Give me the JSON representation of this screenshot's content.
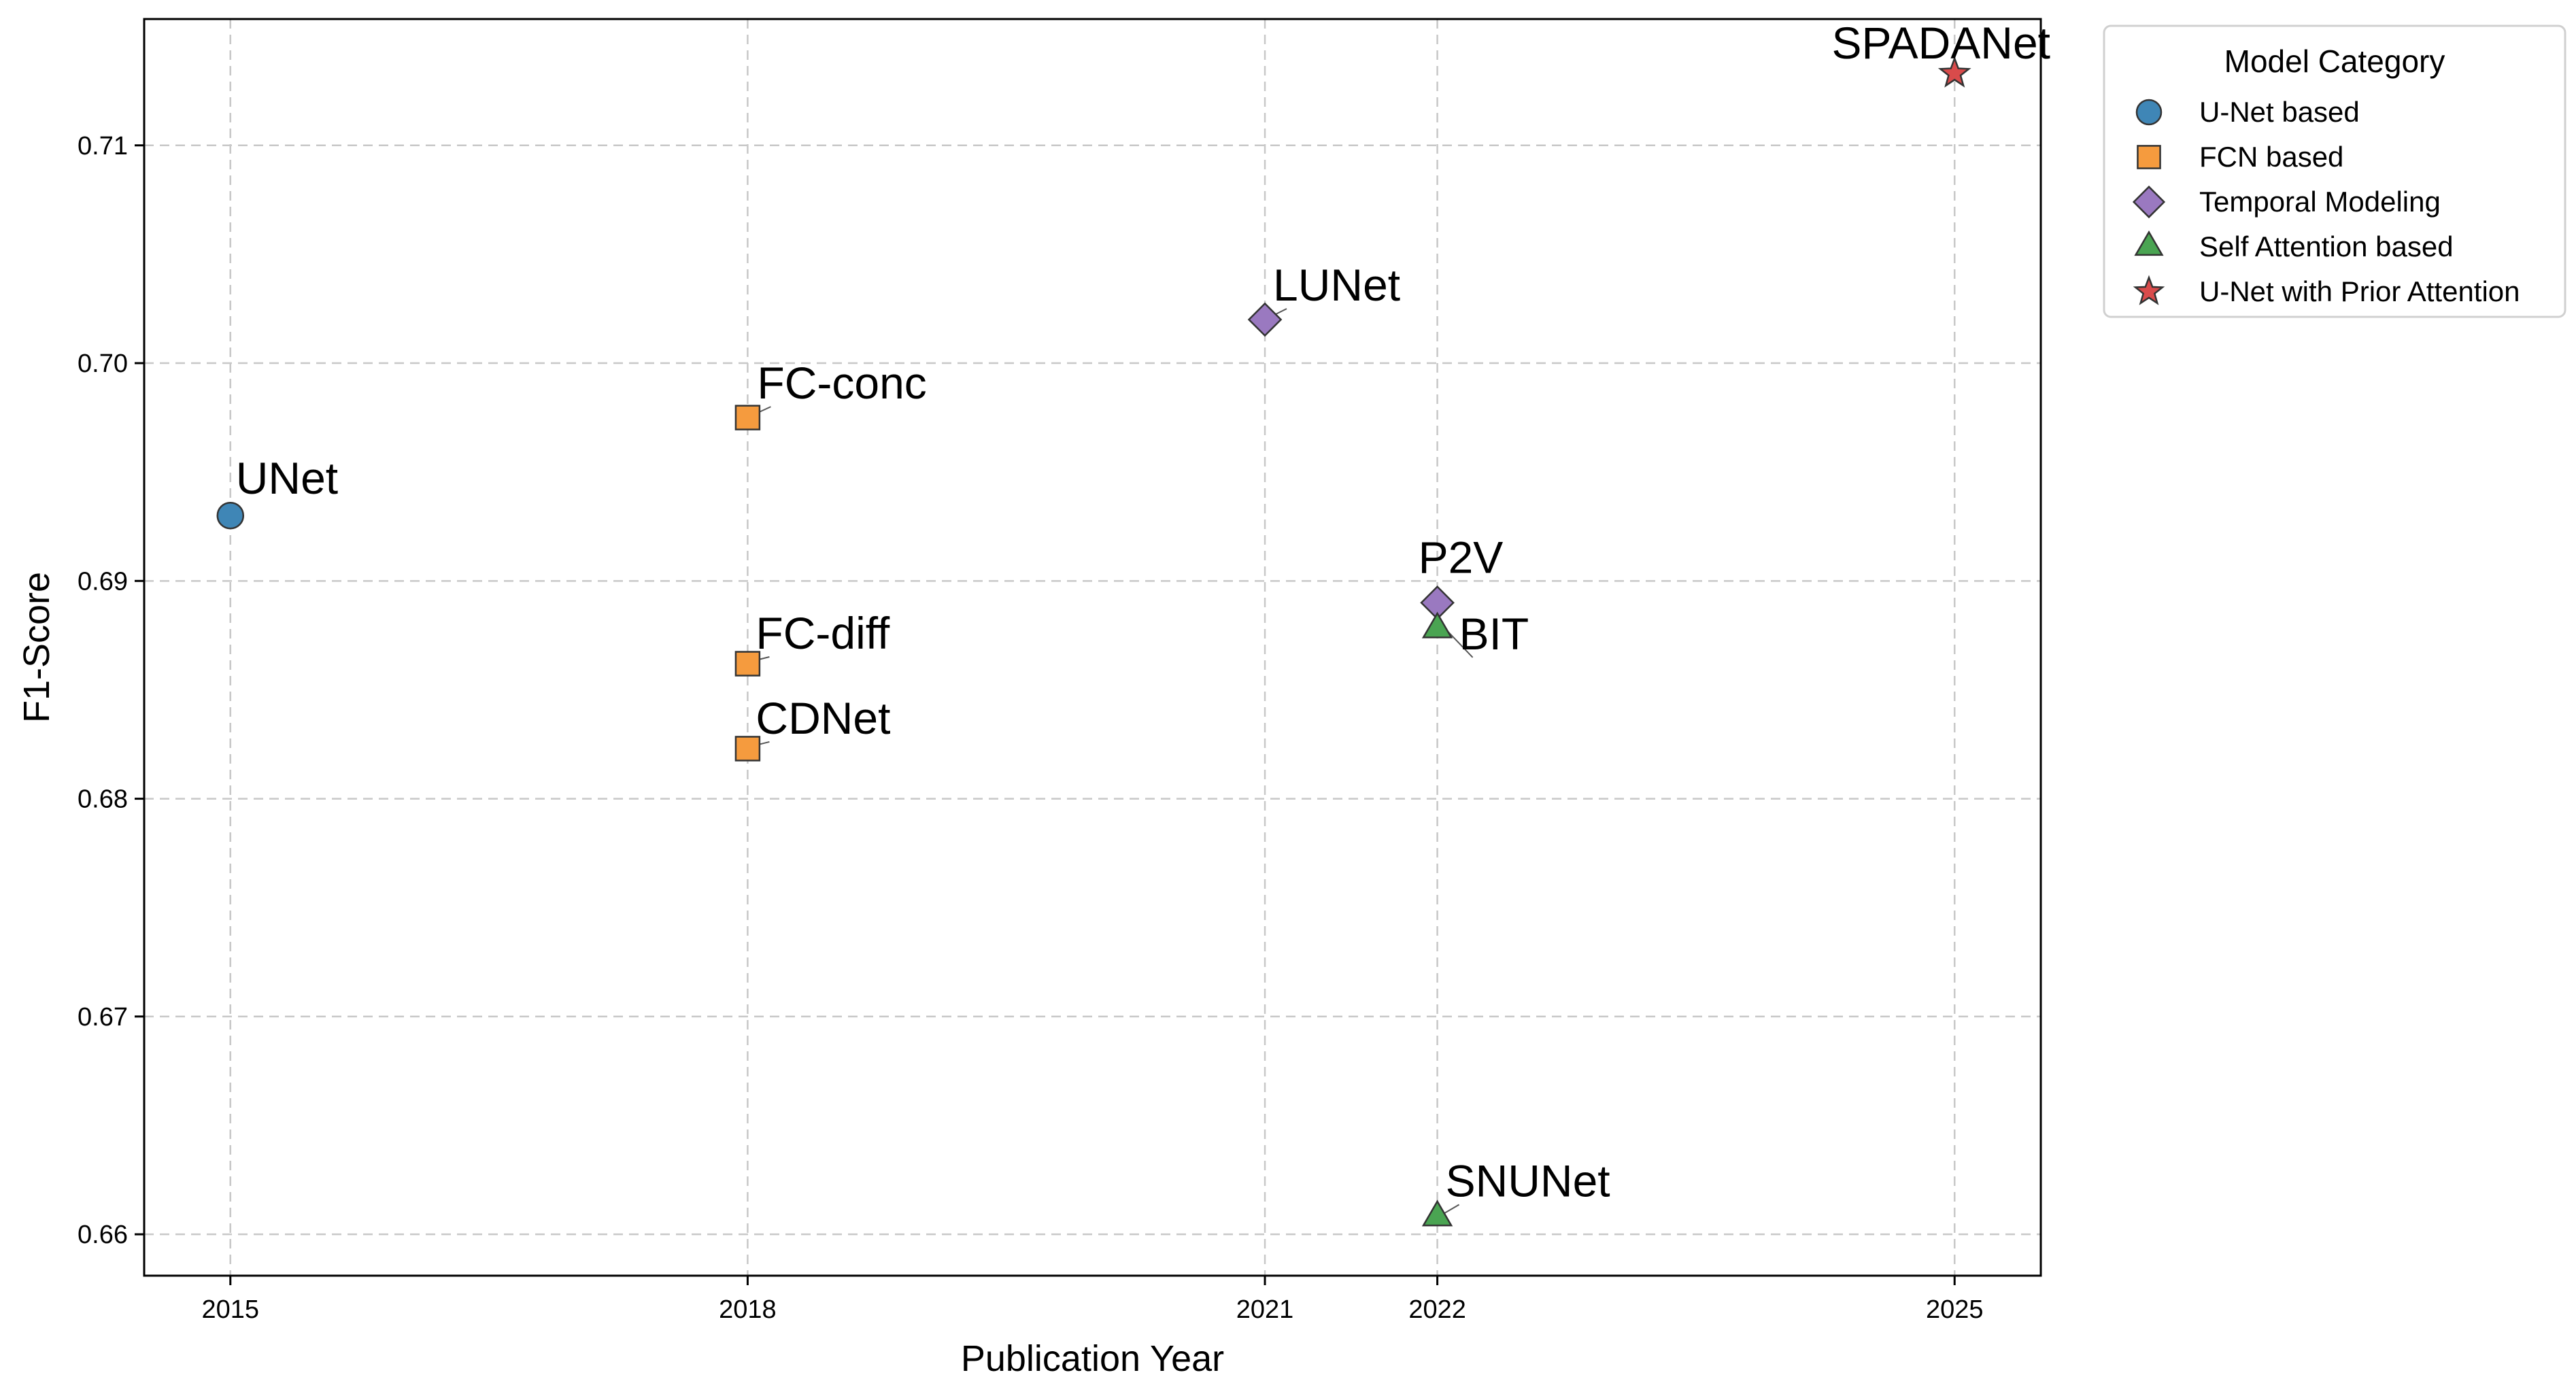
{
  "chart_data": {
    "type": "scatter",
    "title": "",
    "xlabel": "Publication Year",
    "ylabel": "F1-Score",
    "xlim": [
      2014.5,
      2025.5
    ],
    "ylim": [
      0.6581,
      0.7158
    ],
    "x_ticks": [
      2015,
      2018,
      2021,
      2022,
      2025
    ],
    "y_ticks": [
      0.66,
      0.67,
      0.68,
      0.69,
      0.7,
      0.71
    ],
    "grid": true,
    "legend": {
      "title": "Model Category",
      "placement": "outside-top-right"
    },
    "series": [
      {
        "name": "U-Net based",
        "marker": "circle",
        "color": "#3f86b6",
        "points": [
          {
            "label": "UNet",
            "x": 2015,
            "y": 0.693
          }
        ]
      },
      {
        "name": "FCN based",
        "marker": "square",
        "color": "#f59b3e",
        "points": [
          {
            "label": "FC-conc",
            "x": 2018,
            "y": 0.6975
          },
          {
            "label": "FC-diff",
            "x": 2018,
            "y": 0.6862
          },
          {
            "label": "CDNet",
            "x": 2018,
            "y": 0.6823
          }
        ]
      },
      {
        "name": "Temporal Modeling",
        "marker": "diamond",
        "color": "#9a79c0",
        "points": [
          {
            "label": "LUNet",
            "x": 2021,
            "y": 0.702
          },
          {
            "label": "P2V",
            "x": 2022,
            "y": 0.689
          }
        ]
      },
      {
        "name": "Self Attention based",
        "marker": "triangle",
        "color": "#4aa452",
        "points": [
          {
            "label": "BIT",
            "x": 2022,
            "y": 0.6878
          },
          {
            "label": "SNUNet",
            "x": 2022,
            "y": 0.6608
          }
        ]
      },
      {
        "name": "U-Net with Prior Attention",
        "marker": "star",
        "color": "#d94b4b",
        "points": [
          {
            "label": "SPADANet",
            "x": 2025,
            "y": 0.7133
          }
        ]
      }
    ]
  }
}
